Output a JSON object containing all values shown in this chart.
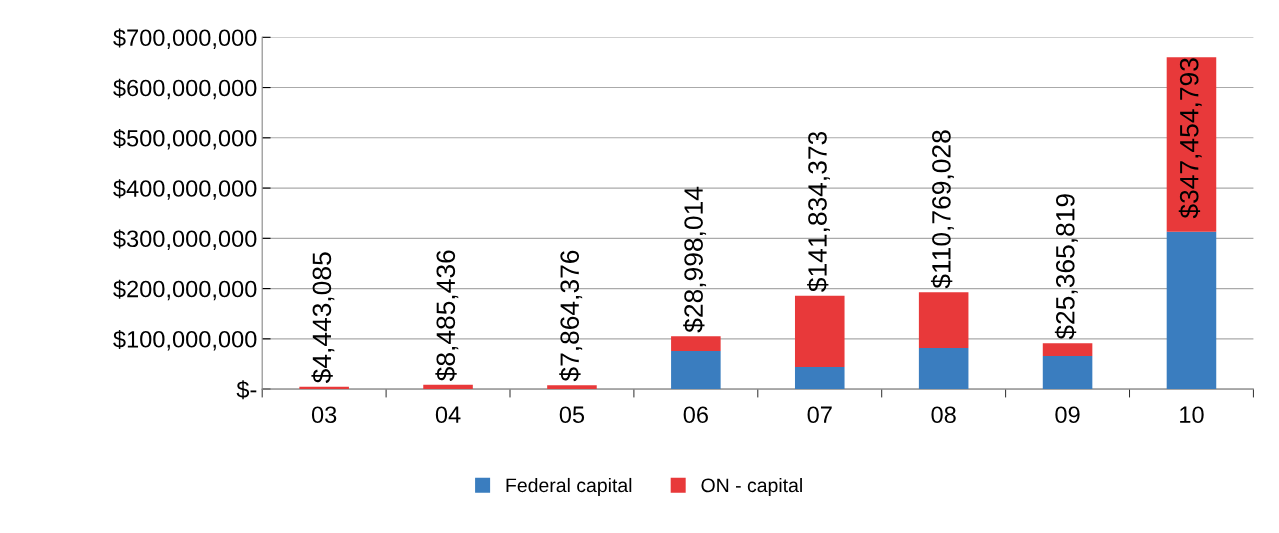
{
  "chart_data": {
    "type": "bar",
    "stacked": true,
    "categories": [
      "03",
      "04",
      "05",
      "06",
      "07",
      "08",
      "09",
      "10"
    ],
    "series": [
      {
        "name": "Federal capital",
        "color": "#3a7dbf",
        "values": [
          0,
          0,
          0,
          76000000,
          44000000,
          82000000,
          66000000,
          313000000
        ]
      },
      {
        "name": "ON - capital",
        "color": "#e8393a",
        "values": [
          4443085,
          8485436,
          7864376,
          28998014,
          141834373,
          110769028,
          25365819,
          347454793
        ],
        "value_labels": [
          "$4,443,085",
          "$8,485,436",
          "$7,864,376",
          "$28,998,014",
          "$141,834,373",
          "$110,769,028",
          "$25,365,819",
          "$347,454,793"
        ]
      }
    ],
    "ylim": [
      0,
      700000000
    ],
    "yticks": [
      {
        "value": 0,
        "label": "$-"
      },
      {
        "value": 100000000,
        "label": "$100,000,000"
      },
      {
        "value": 200000000,
        "label": "$200,000,000"
      },
      {
        "value": 300000000,
        "label": "$300,000,000"
      },
      {
        "value": 400000000,
        "label": "$400,000,000"
      },
      {
        "value": 500000000,
        "label": "$500,000,000"
      },
      {
        "value": 600000000,
        "label": "$600,000,000"
      },
      {
        "value": 700000000,
        "label": "$700,000,000"
      }
    ],
    "grid": "y",
    "legend": "bottom"
  }
}
